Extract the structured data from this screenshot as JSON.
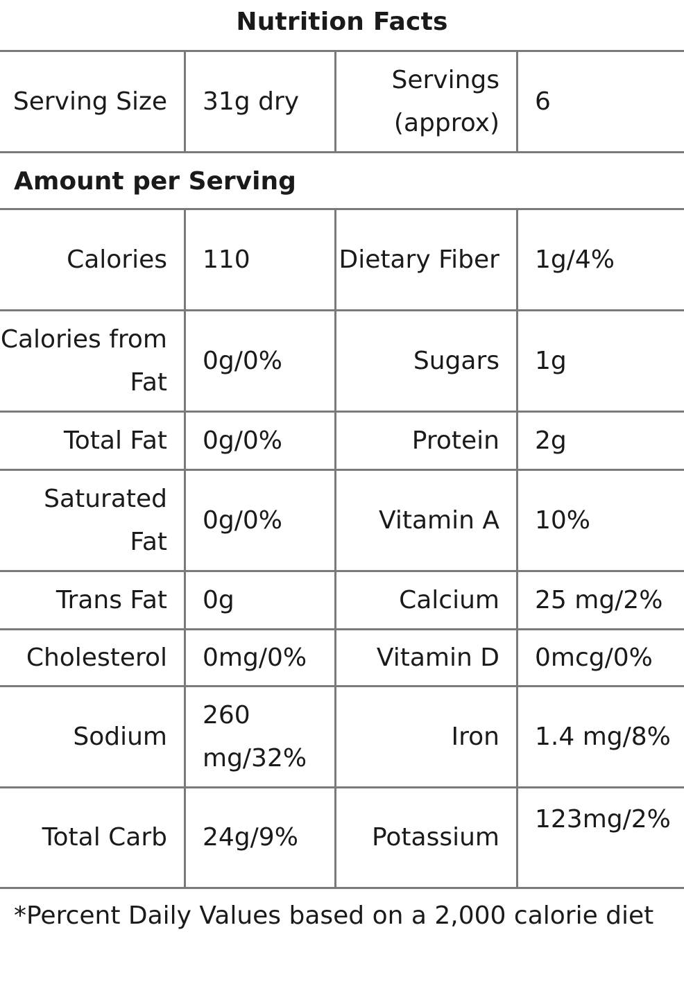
{
  "title": "Nutrition Facts",
  "serving": {
    "size_label": "Serving Size",
    "size_value": "31g dry",
    "servings_label": "Servings (approx)",
    "servings_value": "6"
  },
  "section_header": "Amount per Serving",
  "rows": [
    {
      "left_label": "Calories",
      "left_value": "110",
      "right_label": "Dietary Fiber",
      "right_value": "1g/4%"
    },
    {
      "left_label": "Calories from Fat",
      "left_value": "0g/0%",
      "right_label": "Sugars",
      "right_value": "1g"
    },
    {
      "left_label": "Total Fat",
      "left_value": "0g/0%",
      "right_label": "Protein",
      "right_value": "2g"
    },
    {
      "left_label": "Saturated Fat",
      "left_value": "0g/0%",
      "right_label": "Vitamin A",
      "right_value": "10%"
    },
    {
      "left_label": "Trans Fat",
      "left_value": "0g",
      "right_label": "Calcium",
      "right_value": "25 mg/2%"
    },
    {
      "left_label": "Cholesterol",
      "left_value": "0mg/0%",
      "right_label": "Vitamin D",
      "right_value": "0mcg/0%"
    },
    {
      "left_label": "Sodium",
      "left_value": "260 mg/32%",
      "right_label": "Iron",
      "right_value": "1.4 mg/8%"
    },
    {
      "left_label": "Total Carb",
      "left_value": "24g/9%",
      "right_label": "Potassium",
      "right_value": "123mg/2%"
    }
  ],
  "footnote": "*Percent Daily Values based on a 2,000 calorie diet"
}
